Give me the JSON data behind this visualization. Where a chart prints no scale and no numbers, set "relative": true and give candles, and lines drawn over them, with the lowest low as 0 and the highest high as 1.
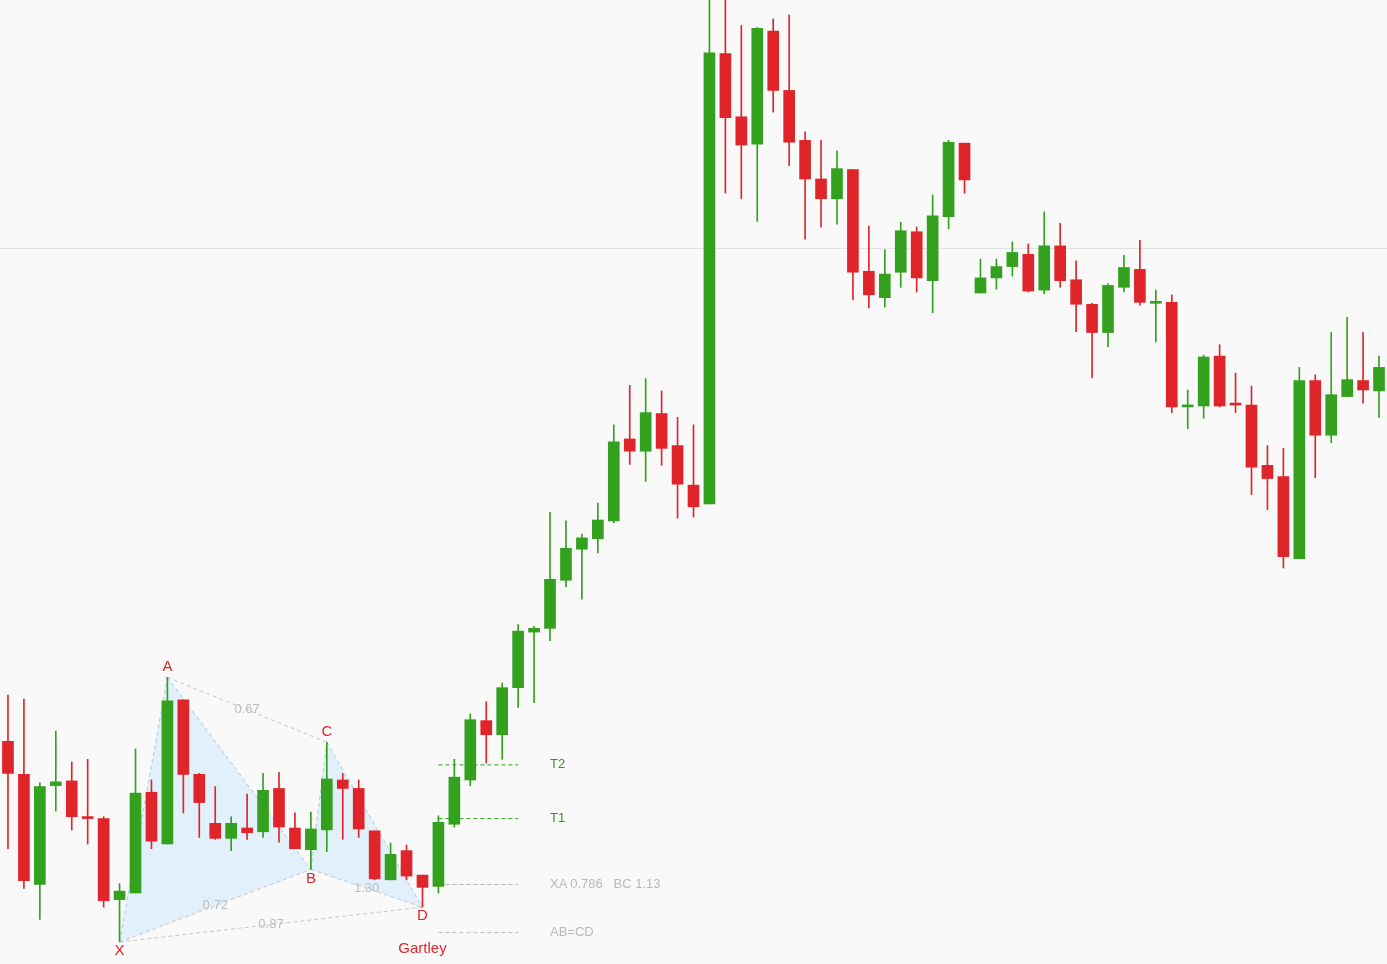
{
  "chart_data": {
    "type": "candlestick",
    "relative": true,
    "categories": [
      null,
      null,
      null,
      null,
      null,
      null,
      null,
      null,
      null,
      null,
      null,
      null,
      null,
      null,
      null,
      null,
      null,
      null,
      null,
      null,
      null,
      null,
      null,
      null,
      null,
      null,
      null,
      null,
      null,
      null,
      null,
      null,
      null,
      null,
      null,
      null,
      null,
      null,
      null,
      null,
      null,
      null,
      null,
      null,
      null,
      null,
      null,
      null,
      null,
      null,
      null,
      null,
      null,
      null,
      null,
      null,
      null,
      null,
      null,
      null,
      null,
      null,
      null,
      null,
      null,
      null,
      null,
      null,
      null,
      null,
      null,
      null,
      null,
      null,
      null,
      null,
      null,
      null,
      null,
      null,
      null,
      null,
      null,
      null,
      null,
      null,
      null
    ],
    "ohlc": [
      [
        0.213,
        0.262,
        0.099,
        0.179
      ],
      [
        0.178,
        0.258,
        0.057,
        0.065
      ],
      [
        0.061,
        0.169,
        0.024,
        0.165
      ],
      [
        0.166,
        0.224,
        0.139,
        0.17
      ],
      [
        0.171,
        0.191,
        0.119,
        0.133
      ],
      [
        0.133,
        0.194,
        0.104,
        0.131
      ],
      [
        0.131,
        0.133,
        0.037,
        0.044
      ],
      [
        0.045,
        0.062,
        0,
        0.054
      ],
      [
        0.052,
        0.205,
        0.052,
        0.158
      ],
      [
        0.159,
        0.172,
        0.099,
        0.107
      ],
      [
        0.104,
        0.281,
        0.104,
        0.256
      ],
      [
        0.257,
        0.257,
        0.137,
        0.178
      ],
      [
        0.178,
        0.179,
        0.111,
        0.148
      ],
      [
        0.126,
        0.165,
        0.109,
        0.11
      ],
      [
        0.11,
        0.133,
        0.097,
        0.126
      ],
      [
        0.121,
        0.157,
        0.109,
        0.116
      ],
      [
        0.117,
        0.179,
        0.111,
        0.161
      ],
      [
        0.163,
        0.18,
        0.106,
        0.122
      ],
      [
        0.121,
        0.137,
        0.099,
        0.099
      ],
      [
        0.098,
        0.138,
        0.077,
        0.12
      ],
      [
        0.119,
        0.212,
        0.096,
        0.173
      ],
      [
        0.172,
        0.179,
        0.109,
        0.163
      ],
      [
        0.163,
        0.172,
        0.111,
        0.12
      ],
      [
        0.118,
        0.118,
        0.066,
        0.067
      ],
      [
        0.066,
        0.105,
        0.066,
        0.093
      ],
      [
        0.097,
        0.103,
        0.066,
        0.07
      ],
      [
        0.071,
        0.071,
        0.037,
        0.058
      ],
      [
        0.059,
        0.134,
        0.052,
        0.127
      ],
      [
        0.125,
        0.194,
        0.122,
        0.175
      ],
      [
        0.172,
        0.242,
        0.166,
        0.236
      ],
      [
        0.235,
        0.255,
        0.19,
        0.22
      ],
      [
        0.22,
        0.275,
        0.194,
        0.27
      ],
      [
        0.27,
        0.337,
        0.249,
        0.33
      ],
      [
        0.329,
        0.335,
        0.254,
        0.333
      ],
      [
        0.333,
        0.456,
        0.32,
        0.385
      ],
      [
        0.384,
        0.447,
        0.377,
        0.418
      ],
      [
        0.417,
        0.433,
        0.364,
        0.429
      ],
      [
        0.428,
        0.466,
        0.413,
        0.448
      ],
      [
        0.447,
        0.549,
        0.445,
        0.531
      ],
      [
        0.534,
        0.591,
        0.507,
        0.521
      ],
      [
        0.521,
        0.598,
        0.489,
        0.562
      ],
      [
        0.561,
        0.585,
        0.506,
        0.524
      ],
      [
        0.527,
        0.557,
        0.45,
        0.486
      ],
      [
        0.485,
        0.549,
        0.451,
        0.462
      ],
      [
        0.465,
        1,
        0.465,
        0.944
      ],
      [
        0.943,
        1,
        0.795,
        0.875
      ],
      [
        0.876,
        0.973,
        0.789,
        0.846
      ],
      [
        0.847,
        0.971,
        0.765,
        0.97
      ],
      [
        0.967,
        0.98,
        0.881,
        0.904
      ],
      [
        0.904,
        0.984,
        0.824,
        0.849
      ],
      [
        0.851,
        0.86,
        0.746,
        0.81
      ],
      [
        0.81,
        0.851,
        0.759,
        0.789
      ],
      [
        0.789,
        0.84,
        0.762,
        0.821
      ],
      [
        0.82,
        0.82,
        0.682,
        0.711
      ],
      [
        0.712,
        0.76,
        0.673,
        0.687
      ],
      [
        0.684,
        0.735,
        0.674,
        0.709
      ],
      [
        0.711,
        0.764,
        0.695,
        0.755
      ],
      [
        0.754,
        0.759,
        0.69,
        0.705
      ],
      [
        0.702,
        0.793,
        0.668,
        0.771
      ],
      [
        0.77,
        0.851,
        0.757,
        0.849
      ],
      [
        0.848,
        0.848,
        0.795,
        0.809
      ],
      [
        0.689,
        0.725,
        0.689,
        0.705
      ],
      [
        0.705,
        0.725,
        0.693,
        0.717
      ],
      [
        0.717,
        0.743,
        0.707,
        0.732
      ],
      [
        0.73,
        0.741,
        0.69,
        0.691
      ],
      [
        0.692,
        0.775,
        0.688,
        0.739
      ],
      [
        0.739,
        0.763,
        0.695,
        0.702
      ],
      [
        0.703,
        0.723,
        0.648,
        0.677
      ],
      [
        0.677,
        0.678,
        0.599,
        0.647
      ],
      [
        0.647,
        0.699,
        0.632,
        0.697
      ],
      [
        0.695,
        0.729,
        0.69,
        0.716
      ],
      [
        0.714,
        0.745,
        0.676,
        0.679
      ],
      [
        0.678,
        0.692,
        0.637,
        0.678
      ],
      [
        0.679,
        0.687,
        0.562,
        0.568
      ],
      [
        0.568,
        0.586,
        0.545,
        0.568
      ],
      [
        0.569,
        0.623,
        0.556,
        0.621
      ],
      [
        0.622,
        0.634,
        0.568,
        0.569
      ],
      [
        0.572,
        0.604,
        0.562,
        0.57
      ],
      [
        0.57,
        0.59,
        0.475,
        0.504
      ],
      [
        0.506,
        0.527,
        0.459,
        0.492
      ],
      [
        0.494,
        0.524,
        0.397,
        0.409
      ],
      [
        0.407,
        0.61,
        0.407,
        0.596
      ],
      [
        0.596,
        0.602,
        0.493,
        0.538
      ],
      [
        0.538,
        0.647,
        0.53,
        0.581
      ],
      [
        0.579,
        0.663,
        0.579,
        0.597
      ],
      [
        0.596,
        0.647,
        0.572,
        0.586
      ],
      [
        0.585,
        0.622,
        0.557,
        0.61
      ]
    ],
    "colors": [
      "#e0252a",
      "#e0252a",
      "#33a11d",
      "#33a11d",
      "#e0252a",
      "#e0252a",
      "#e0252a",
      "#33a11d",
      "#33a11d",
      "#e0252a",
      "#33a11d",
      "#e0252a",
      "#e0252a",
      "#e0252a",
      "#33a11d",
      "#e0252a",
      "#33a11d",
      "#e0252a",
      "#e0252a",
      "#33a11d",
      "#33a11d",
      "#e0252a",
      "#e0252a",
      "#e0252a",
      "#33a11d",
      "#e0252a",
      "#e0252a",
      "#33a11d",
      "#33a11d",
      "#33a11d",
      "#e0252a",
      "#33a11d",
      "#33a11d",
      "#33a11d",
      "#33a11d",
      "#33a11d",
      "#33a11d",
      "#33a11d",
      "#33a11d",
      "#e0252a",
      "#33a11d",
      "#e0252a",
      "#e0252a",
      "#e0252a",
      "#33a11d",
      "#e0252a",
      "#e0252a",
      "#33a11d",
      "#e0252a",
      "#e0252a",
      "#e0252a",
      "#e0252a",
      "#33a11d",
      "#e0252a",
      "#e0252a",
      "#33a11d",
      "#33a11d",
      "#e0252a",
      "#33a11d",
      "#33a11d",
      "#e0252a",
      "#33a11d",
      "#33a11d",
      "#33a11d",
      "#e0252a",
      "#33a11d",
      "#e0252a",
      "#e0252a",
      "#e0252a",
      "#33a11d",
      "#33a11d",
      "#e0252a",
      "#33a11d",
      "#e0252a",
      "#33a11d",
      "#33a11d",
      "#e0252a",
      "#e0252a",
      "#e0252a",
      "#e0252a",
      "#e0252a",
      "#33a11d",
      "#e0252a",
      "#33a11d",
      "#33a11d",
      "#e0252a",
      "#33a11d"
    ],
    "series": [
      {
        "type": "line",
        "name": "T2",
        "color": "#2e9a22",
        "line_style": "dashed",
        "marker": "none",
        "values": [
          null,
          null,
          null,
          null,
          null,
          null,
          null,
          null,
          null,
          null,
          null,
          null,
          null,
          null,
          null,
          null,
          null,
          null,
          null,
          null,
          null,
          null,
          null,
          null,
          null,
          null,
          null,
          0.188,
          0.188,
          0.188,
          0.188,
          0.188,
          0.188,
          null,
          null,
          null,
          null,
          null,
          null,
          null,
          null,
          null,
          null,
          null,
          null,
          null,
          null,
          null,
          null,
          null,
          null,
          null,
          null,
          null,
          null,
          null,
          null,
          null,
          null,
          null,
          null,
          null,
          null,
          null,
          null,
          null,
          null,
          null,
          null,
          null,
          null,
          null,
          null,
          null,
          null,
          null,
          null,
          null,
          null,
          null,
          null,
          null,
          null,
          null,
          null,
          null,
          null
        ]
      },
      {
        "type": "line",
        "name": "T1",
        "color": "#2e9a22",
        "line_style": "dashed",
        "marker": "none",
        "values": [
          null,
          null,
          null,
          null,
          null,
          null,
          null,
          null,
          null,
          null,
          null,
          null,
          null,
          null,
          null,
          null,
          null,
          null,
          null,
          null,
          null,
          null,
          null,
          null,
          null,
          null,
          null,
          0.131,
          0.131,
          0.131,
          0.131,
          0.131,
          0.131,
          null,
          null,
          null,
          null,
          null,
          null,
          null,
          null,
          null,
          null,
          null,
          null,
          null,
          null,
          null,
          null,
          null,
          null,
          null,
          null,
          null,
          null,
          null,
          null,
          null,
          null,
          null,
          null,
          null,
          null,
          null,
          null,
          null,
          null,
          null,
          null,
          null,
          null,
          null,
          null,
          null,
          null,
          null,
          null,
          null,
          null,
          null,
          null,
          null,
          null,
          null,
          null,
          null,
          null
        ]
      },
      {
        "type": "line",
        "name": "XA 0.786",
        "color": "#b9b9b9",
        "line_style": "dashed",
        "marker": "none",
        "values": [
          null,
          null,
          null,
          null,
          null,
          null,
          null,
          null,
          null,
          null,
          null,
          null,
          null,
          null,
          null,
          null,
          null,
          null,
          null,
          null,
          null,
          null,
          null,
          null,
          null,
          null,
          null,
          0.061,
          0.061,
          0.061,
          0.061,
          0.061,
          0.061,
          null,
          null,
          null,
          null,
          null,
          null,
          null,
          null,
          null,
          null,
          null,
          null,
          null,
          null,
          null,
          null,
          null,
          null,
          null,
          null,
          null,
          null,
          null,
          null,
          null,
          null,
          null,
          null,
          null,
          null,
          null,
          null,
          null,
          null,
          null,
          null,
          null,
          null,
          null,
          null,
          null,
          null,
          null,
          null,
          null,
          null,
          null,
          null,
          null,
          null,
          null,
          null,
          null,
          null
        ]
      },
      {
        "type": "line",
        "name": "BC 1.13",
        "color": "#b9b9b9",
        "line_style": "dashed",
        "marker": "none",
        "values": [
          null,
          null,
          null,
          null,
          null,
          null,
          null,
          null,
          null,
          null,
          null,
          null,
          null,
          null,
          null,
          null,
          null,
          null,
          null,
          null,
          null,
          null,
          null,
          null,
          null,
          null,
          null,
          0.061,
          0.061,
          0.061,
          0.061,
          0.061,
          0.061,
          null,
          null,
          null,
          null,
          null,
          null,
          null,
          null,
          null,
          null,
          null,
          null,
          null,
          null,
          null,
          null,
          null,
          null,
          null,
          null,
          null,
          null,
          null,
          null,
          null,
          null,
          null,
          null,
          null,
          null,
          null,
          null,
          null,
          null,
          null,
          null,
          null,
          null,
          null,
          null,
          null,
          null,
          null,
          null,
          null,
          null,
          null,
          null,
          null,
          null,
          null,
          null,
          null,
          null
        ]
      },
      {
        "type": "line",
        "name": "AB=CD",
        "color": "#b9b9b9",
        "line_style": "dashed",
        "marker": "none",
        "values": [
          null,
          null,
          null,
          null,
          null,
          null,
          null,
          null,
          null,
          null,
          null,
          null,
          null,
          null,
          null,
          null,
          null,
          null,
          null,
          null,
          null,
          null,
          null,
          null,
          null,
          null,
          null,
          0.01,
          0.01,
          0.01,
          0.01,
          0.01,
          0.01,
          null,
          null,
          null,
          null,
          null,
          null,
          null,
          null,
          null,
          null,
          null,
          null,
          null,
          null,
          null,
          null,
          null,
          null,
          null,
          null,
          null,
          null,
          null,
          null,
          null,
          null,
          null,
          null,
          null,
          null,
          null,
          null,
          null,
          null,
          null,
          null,
          null,
          null,
          null,
          null,
          null,
          null,
          null,
          null,
          null,
          null,
          null,
          null,
          null,
          null,
          null,
          null,
          null,
          null
        ]
      }
    ],
    "annotations": [
      {
        "text": "X",
        "y": 0
      },
      {
        "text": "A",
        "y": 0.281
      },
      {
        "text": "B",
        "y": 0.077
      },
      {
        "text": "C",
        "y": 0.212
      },
      {
        "text": "D",
        "y": 0.037
      },
      "0.72",
      "0.67",
      "1.30",
      "0.87",
      "Gartley"
    ],
    "ref_lines": [
      {
        "axis": "y",
        "value": 0.737,
        "color": "#e2e2e2",
        "line_style": "solid"
      }
    ]
  }
}
